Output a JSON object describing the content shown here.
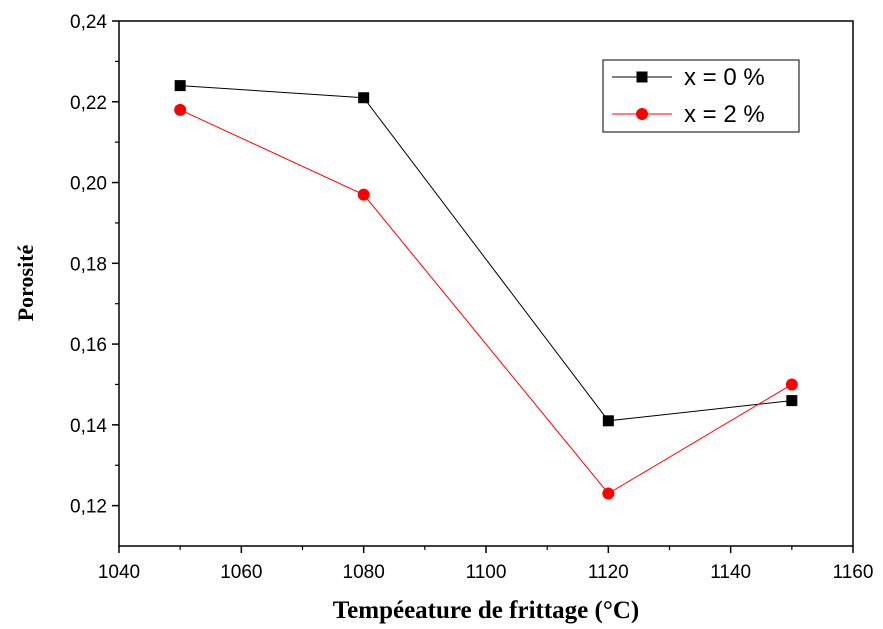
{
  "chart_data": {
    "type": "line",
    "title": "",
    "xlabel": "Tempéeature de frittage (°C)",
    "ylabel": "Porosité",
    "xlim": [
      1040,
      1160
    ],
    "ylim": [
      0.11,
      0.24
    ],
    "xticks": [
      1040,
      1060,
      1080,
      1100,
      1120,
      1140,
      1160
    ],
    "xtick_labels": [
      "1040",
      "1060",
      "1080",
      "1100",
      "1120",
      "1140",
      "1160"
    ],
    "yticks": [
      0.12,
      0.14,
      0.16,
      0.18,
      0.2,
      0.22,
      0.24
    ],
    "ytick_labels": [
      "0,12",
      "0,14",
      "0,16",
      "0,18",
      "0,20",
      "0,22",
      "0,24"
    ],
    "grid": false,
    "legend_position": "top-right",
    "series": [
      {
        "name": "x = 0 %",
        "color": "#000000",
        "marker": "square",
        "x": [
          1050,
          1080,
          1120,
          1150
        ],
        "y": [
          0.224,
          0.221,
          0.141,
          0.146
        ]
      },
      {
        "name": "x = 2 %",
        "color": "#ff0000",
        "marker": "circle",
        "x": [
          1050,
          1080,
          1120,
          1150
        ],
        "y": [
          0.218,
          0.197,
          0.123,
          0.15
        ]
      }
    ]
  }
}
